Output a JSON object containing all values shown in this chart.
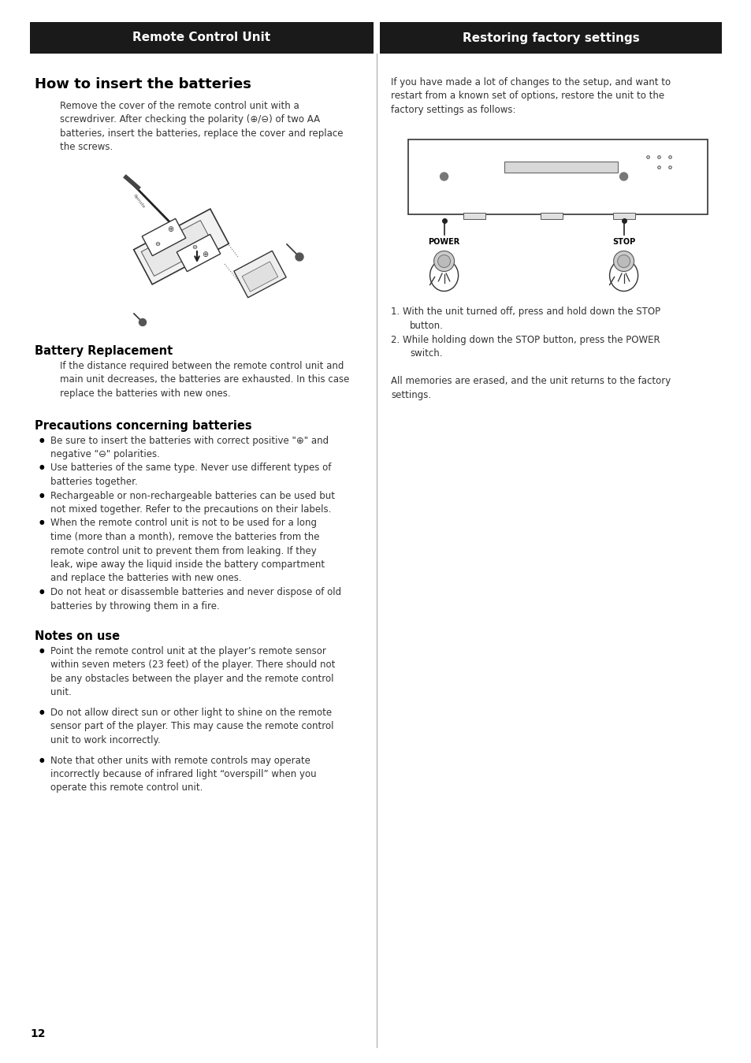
{
  "page_bg": "#ffffff",
  "header_bg": "#1a1a1a",
  "header_text_color": "#ffffff",
  "header_left": "Remote Control Unit",
  "header_right": "Restoring factory settings",
  "left_col": {
    "section1_title": "How to insert the batteries",
    "section1_body_lines": [
      "Remove the cover of the remote control unit with a",
      "screwdriver. After checking the polarity (⊕/⊖) of two AA",
      "batteries, insert the batteries, replace the cover and replace",
      "the screws."
    ],
    "section2_title": "Battery Replacement",
    "section2_body_lines": [
      "If the distance required between the remote control unit and",
      "main unit decreases, the batteries are exhausted. In this case",
      "replace the batteries with new ones."
    ],
    "section3_title": "Precautions concerning batteries",
    "bullets1": [
      [
        "Be sure to insert the batteries with correct positive \"⊕\" and",
        "negative \"⊖\" polarities."
      ],
      [
        "Use batteries of the same type. Never use different types of",
        "batteries together."
      ],
      [
        "Rechargeable or non-rechargeable batteries can be used but",
        "not mixed together. Refer to the precautions on their labels."
      ],
      [
        "When the remote control unit is not to be used for a long",
        "time (more than a month), remove the batteries from the",
        "remote control unit to prevent them from leaking. If they",
        "leak, wipe away the liquid inside the battery compartment",
        "and replace the batteries with new ones."
      ],
      [
        "Do not heat or disassemble batteries and never dispose of old",
        "batteries by throwing them in a fire."
      ]
    ],
    "section4_title": "Notes on use",
    "bullets2": [
      [
        "Point the remote control unit at the player’s remote sensor",
        "within seven meters (23 feet) of the player. There should not",
        "be any obstacles between the player and the remote control",
        "unit."
      ],
      [
        "Do not allow direct sun or other light to shine on the remote",
        "sensor part of the player. This may cause the remote control",
        "unit to work incorrectly."
      ],
      [
        "Note that other units with remote controls may operate",
        "incorrectly because of infrared light “overspill” when you",
        "operate this remote control unit."
      ]
    ]
  },
  "right_col": {
    "intro_lines": [
      "If you have made a lot of changes to the setup, and want to",
      "restart from a known set of options, restore the unit to the",
      "factory settings as follows:"
    ],
    "steps": [
      [
        "With the unit turned off, press and hold down the STOP",
        "button."
      ],
      [
        "While holding down the STOP button, press the POWER",
        "switch."
      ]
    ],
    "conclusion_lines": [
      "All memories are erased, and the unit returns to the factory",
      "settings."
    ]
  },
  "page_number": "12"
}
